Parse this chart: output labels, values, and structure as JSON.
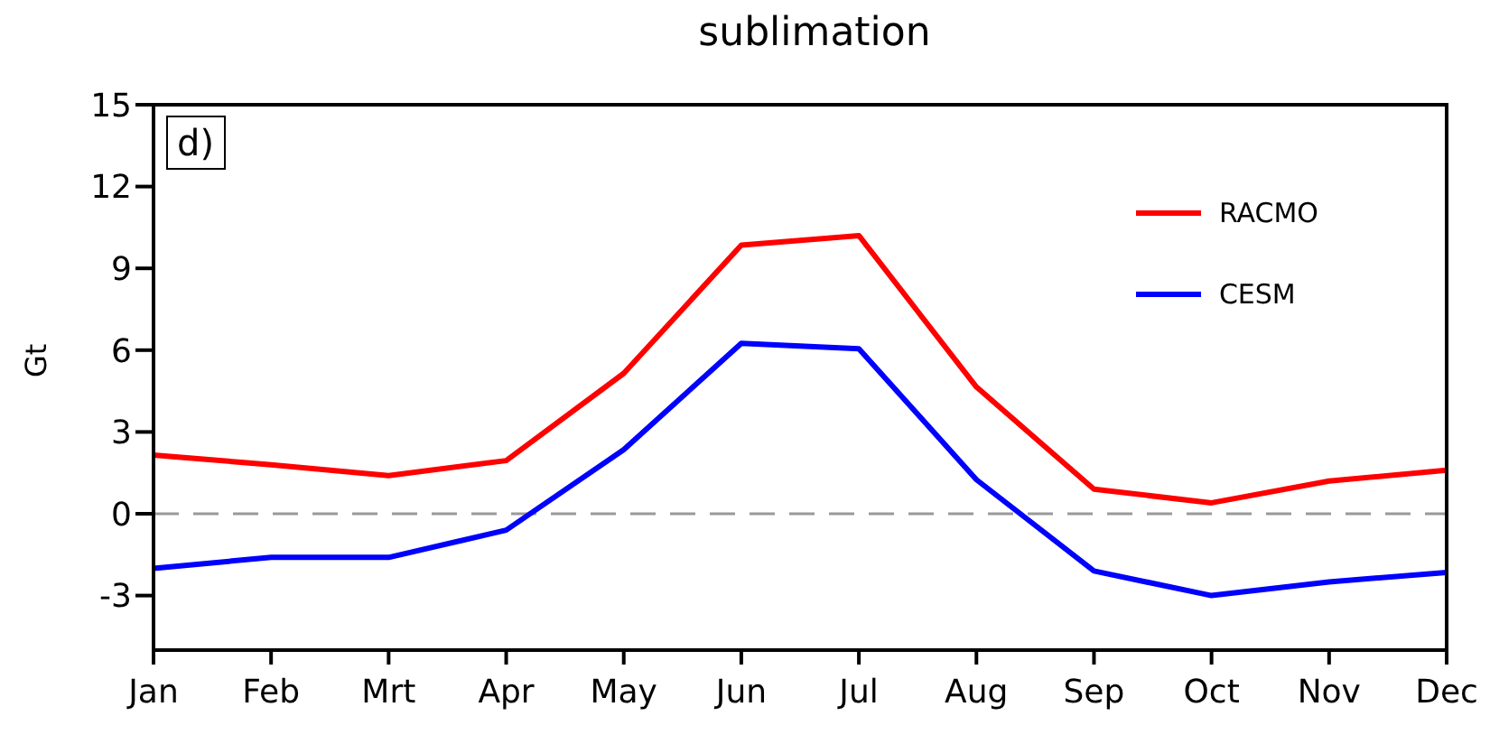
{
  "chart_data": {
    "type": "line",
    "title": "sublimation",
    "ylabel": "Gt",
    "categories": [
      "Jan",
      "Feb",
      "Mrt",
      "Apr",
      "May",
      "Jun",
      "Jul",
      "Aug",
      "Sep",
      "Oct",
      "Nov",
      "Dec"
    ],
    "series": [
      {
        "name": "RACMO",
        "color": "#ff0000",
        "values": [
          2.15,
          1.8,
          1.4,
          1.95,
          5.15,
          9.85,
          10.2,
          4.65,
          0.9,
          0.4,
          1.2,
          1.6
        ]
      },
      {
        "name": "CESM",
        "color": "#0000ff",
        "values": [
          -2.0,
          -1.6,
          -1.6,
          -0.6,
          2.35,
          6.25,
          6.05,
          1.25,
          -2.1,
          -3.0,
          -2.5,
          -2.15
        ]
      }
    ],
    "ylim": [
      -5,
      15
    ],
    "yticks": [
      -3,
      0,
      3,
      6,
      9,
      12,
      15
    ],
    "grid": false,
    "legend": "top right",
    "marker": "none",
    "line_style": "solid",
    "ref_lines": [
      {
        "axis": "y",
        "value": 0,
        "color": "#999999",
        "line_style": "dashed"
      }
    ],
    "annotations": [
      "d)"
    ]
  }
}
